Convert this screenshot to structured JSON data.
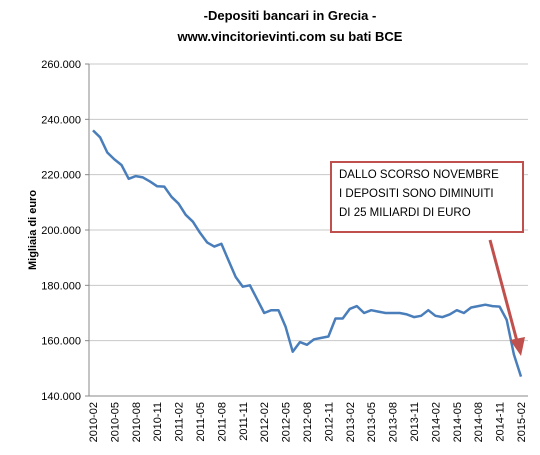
{
  "chart_data": {
    "type": "line",
    "title": "-Depositi bancari in Grecia -",
    "subtitle": "www.vincitorievinti.com su bati BCE",
    "y_label": "Migliaia di euro",
    "annotation": [
      "DALLO SCORSO  NOVEMBRE",
      "I DEPOSITI SONO DIMINUITI",
      "DI 25 MILIARDI DI EURO"
    ],
    "categories": [
      "2010-02",
      null,
      null,
      "2010-05",
      null,
      null,
      "2010-08",
      null,
      null,
      "2010-11",
      null,
      null,
      "2011-02",
      null,
      null,
      "2011-05",
      null,
      null,
      "2011-08",
      null,
      null,
      "2011-11",
      null,
      null,
      "2012-02",
      null,
      null,
      "2012-05",
      null,
      null,
      "2012-08",
      null,
      null,
      "2012-11",
      null,
      null,
      "2013-02",
      null,
      null,
      "2013-05",
      null,
      null,
      "2013-08",
      null,
      null,
      "2013-11",
      null,
      null,
      "2014-02",
      null,
      null,
      "2014-05",
      null,
      null,
      "2014-08",
      null,
      null,
      "2014-11",
      null,
      null,
      "2015-02"
    ],
    "series": [
      {
        "name": "Depositi",
        "color": "#4a7ebb",
        "values": [
          236000,
          233500,
          228000,
          225500,
          223500,
          218500,
          219500,
          219000,
          217500,
          215800,
          215700,
          212000,
          209500,
          205500,
          203000,
          199000,
          195500,
          194000,
          195000,
          189000,
          183000,
          179500,
          180000,
          175000,
          170000,
          171000,
          171000,
          165000,
          156000,
          159500,
          158500,
          160500,
          161000,
          161500,
          168000,
          168000,
          171500,
          172500,
          170000,
          171000,
          170500,
          170000,
          170000,
          170000,
          169500,
          168500,
          169000,
          171000,
          169000,
          168500,
          169500,
          171000,
          170000,
          172000,
          172500,
          173000,
          172500,
          172300,
          167500,
          155000,
          147000
        ]
      }
    ],
    "ylim": [
      140000,
      260000
    ],
    "yticks": [
      {
        "value": 140000,
        "label": "140.000"
      },
      {
        "value": 160000,
        "label": "160.000"
      },
      {
        "value": 180000,
        "label": "180.000"
      },
      {
        "value": 200000,
        "label": "200.000"
      },
      {
        "value": 220000,
        "label": "220.000"
      },
      {
        "value": 240000,
        "label": "240.000"
      },
      {
        "value": 260000,
        "label": "260.000"
      }
    ],
    "grid": true
  }
}
